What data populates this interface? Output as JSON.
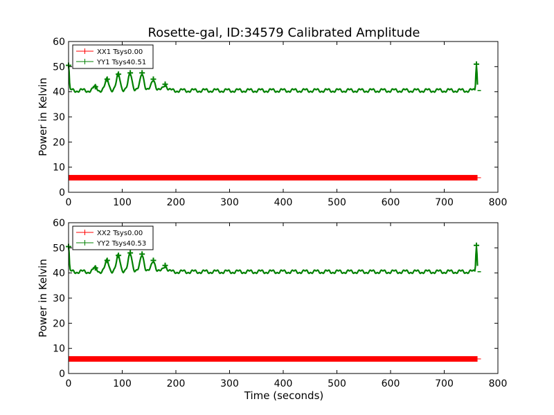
{
  "chart_data": {
    "type": "line",
    "title": "Rosette-gal, ID:34579 Calibrated Amplitude",
    "xlabel": "Time (seconds)",
    "panels": [
      {
        "ylabel": "Power in Kelvin",
        "xlim": [
          0,
          800
        ],
        "ylim": [
          0,
          60
        ],
        "xticks": [
          "0",
          "100",
          "200",
          "300",
          "400",
          "500",
          "600",
          "700",
          "800"
        ],
        "yticks": [
          "0",
          "10",
          "20",
          "30",
          "40",
          "50",
          "60"
        ],
        "legend_position": "top-left",
        "series": [
          {
            "name": "XX1 Tsys0.00",
            "color": "#ff0000",
            "level": 5.8,
            "x_range": [
              0,
              762
            ]
          },
          {
            "name": "YY1 Tsys40.51",
            "color": "#008000",
            "level": 40.5,
            "x_range": [
              0,
              762
            ],
            "spikes": [
              [
                0,
                50.5
              ],
              [
                50,
                42
              ],
              [
                72,
                45
              ],
              [
                93,
                47
              ],
              [
                115,
                47.5
              ],
              [
                137,
                47.5
              ],
              [
                158,
                45
              ],
              [
                180,
                43
              ],
              [
                760,
                51
              ]
            ]
          }
        ]
      },
      {
        "ylabel": "Power in Kelvin",
        "xlim": [
          0,
          800
        ],
        "ylim": [
          0,
          60
        ],
        "xticks": [
          "0",
          "100",
          "200",
          "300",
          "400",
          "500",
          "600",
          "700",
          "800"
        ],
        "yticks": [
          "0",
          "10",
          "20",
          "30",
          "40",
          "50",
          "60"
        ],
        "legend_position": "top-left",
        "series": [
          {
            "name": "XX2 Tsys0.00",
            "color": "#ff0000",
            "level": 5.8,
            "x_range": [
              0,
              762
            ]
          },
          {
            "name": "YY2 Tsys40.53",
            "color": "#008000",
            "level": 40.5,
            "x_range": [
              0,
              762
            ],
            "spikes": [
              [
                0,
                50.5
              ],
              [
                50,
                42
              ],
              [
                72,
                45
              ],
              [
                93,
                47
              ],
              [
                115,
                48
              ],
              [
                137,
                47.5
              ],
              [
                158,
                45
              ],
              [
                180,
                43
              ],
              [
                760,
                51
              ]
            ]
          }
        ]
      }
    ]
  }
}
